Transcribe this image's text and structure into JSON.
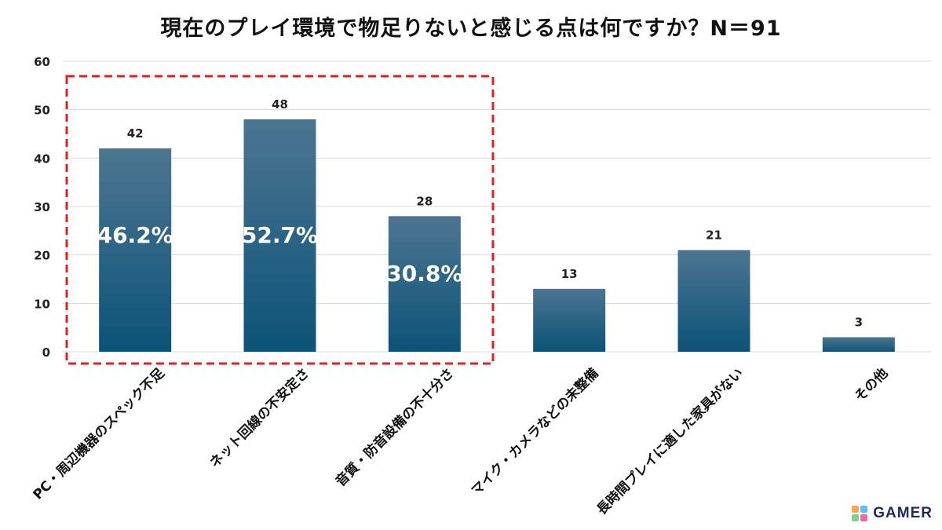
{
  "title": "現在のプレイ環境で物足りないと感じる点は何ですか？N＝91",
  "brand": {
    "logo_text": "GAMER"
  },
  "chart_data": {
    "type": "bar",
    "title": "現在のプレイ環境で物足りないと感じる点は何ですか？N＝91",
    "categories": [
      "PC・周辺機器のスペック不足",
      "ネット回線の不安定さ",
      "音質・防音設備の不十分さ",
      "マイク・カメラなどの未整備",
      "長時間プレイに適した家具がない",
      "その他"
    ],
    "values": [
      42,
      48,
      28,
      13,
      21,
      3
    ],
    "value_labels": [
      "42",
      "48",
      "28",
      "13",
      "21",
      "3"
    ],
    "percent_labels": [
      "46.2%",
      "52.7%",
      "30.8%"
    ],
    "ylim": [
      0,
      60
    ],
    "yticks": [
      "0",
      "10",
      "20",
      "30",
      "40",
      "50",
      "60"
    ],
    "xlabel": "",
    "ylabel": "",
    "grid": true,
    "highlight_first_n": 3,
    "colors": {
      "bar_top": "#4c7591",
      "bar_bottom": "#0b5377",
      "grid": "#d9d9d9",
      "highlight": "#e02020"
    }
  }
}
